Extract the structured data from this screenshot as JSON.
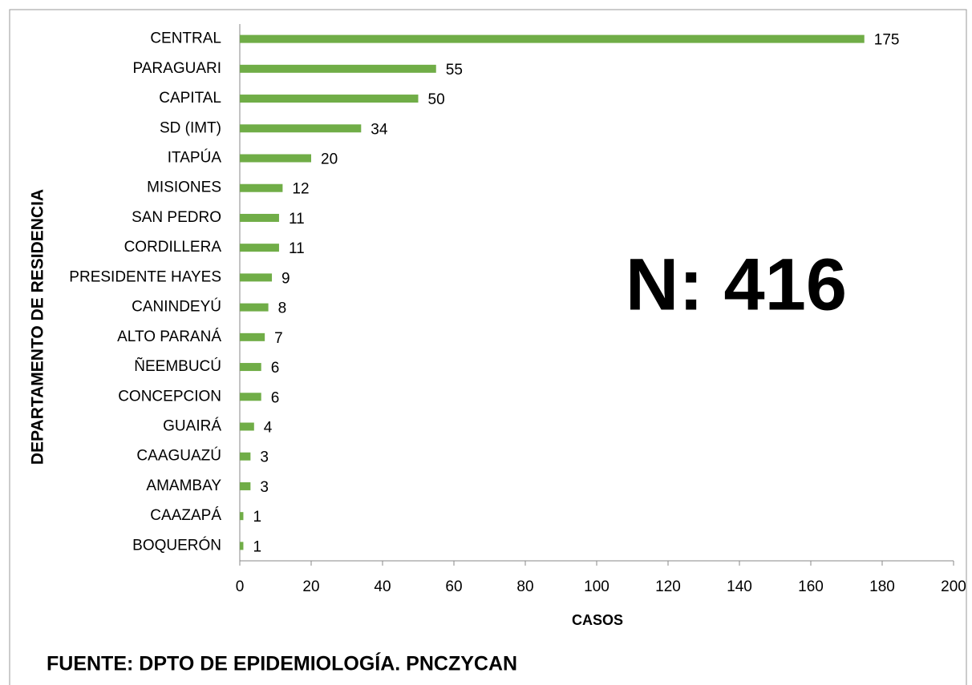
{
  "chart_data": {
    "type": "bar",
    "orientation": "horizontal",
    "categories": [
      "CENTRAL",
      "PARAGUARI",
      "CAPITAL",
      "SD (IMT)",
      "ITAPÚA",
      "MISIONES",
      "SAN PEDRO",
      "CORDILLERA",
      "PRESIDENTE HAYES",
      "CANINDEYÚ",
      "ALTO PARANÁ",
      "ÑEEMBUCÚ",
      "CONCEPCION",
      "GUAIRÁ",
      "CAAGUAZÚ",
      "AMAMBAY",
      "CAAZAPÁ",
      "BOQUERÓN"
    ],
    "values": [
      175,
      55,
      50,
      34,
      20,
      12,
      11,
      11,
      9,
      8,
      7,
      6,
      6,
      4,
      3,
      3,
      1,
      1
    ],
    "color": "#70ad47",
    "xlim": [
      0,
      200
    ],
    "xticks": [
      0,
      20,
      40,
      60,
      80,
      100,
      120,
      140,
      160,
      180,
      200
    ],
    "xlabel": "CASOS",
    "ylabel": "DEPARTAMENTO DE RESIDENCIA",
    "annotation": "N: 416",
    "source": "FUENTE: DPTO DE EPIDEMIOLOGÍA.  PNCZYCAN"
  }
}
